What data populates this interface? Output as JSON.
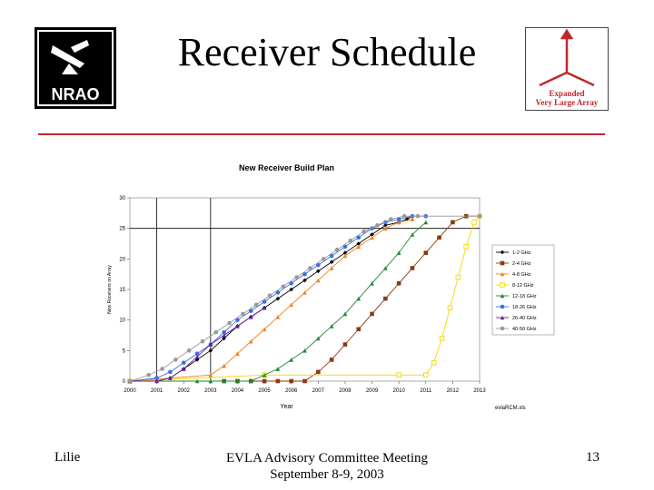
{
  "slide": {
    "title": "Receiver Schedule",
    "footer_left": "Lilie",
    "footer_center_line1": "EVLA Advisory Committee Meeting",
    "footer_center_line2": "September 8-9, 2003",
    "page_number": "13",
    "rule_color": "#c0272d"
  },
  "logos": {
    "left": {
      "text": "NRAO"
    },
    "right": {
      "line1": "Expanded",
      "line2": "Very Large Array"
    }
  },
  "chart_data": {
    "type": "line",
    "title": "New Receiver Build Plan",
    "xlabel": "Year",
    "ylabel": "New Receivers on Array",
    "file_label": "evlaRCM.xls",
    "xlim": [
      2000,
      2013
    ],
    "ylim": [
      0,
      30
    ],
    "x_ticks": [
      "2000",
      "2001",
      "2002",
      "2003",
      "2004",
      "2005",
      "2006",
      "2007",
      "2008",
      "2009",
      "2010",
      "2011",
      "2012",
      "2013"
    ],
    "y_ticks": [
      "0",
      "5",
      "10",
      "15",
      "20",
      "25",
      "30"
    ],
    "reference_lines": {
      "vertical_x": [
        2001,
        2003
      ],
      "horizontal_y": [
        25
      ]
    },
    "series": [
      {
        "name": "1-2 GHz",
        "color": "#000000",
        "marker": "diamond",
        "x": [
          2000,
          2001,
          2001.5,
          2002,
          2002.5,
          2003,
          2003.5,
          2004,
          2004.5,
          2005,
          2005.5,
          2006,
          2006.5,
          2007,
          2007.5,
          2008,
          2008.5,
          2009,
          2009.5,
          2010,
          2010.3,
          2010.5
        ],
        "y": [
          0,
          0,
          0.5,
          2,
          3.5,
          5,
          7,
          9,
          10.5,
          12,
          13.5,
          15,
          16.5,
          18,
          19.5,
          21,
          22.5,
          24,
          25.5,
          26,
          26.5,
          27
        ]
      },
      {
        "name": "2-4 GHz",
        "color": "#8b3a0f",
        "marker": "square",
        "x": [
          2000,
          2003.5,
          2004,
          2004.5,
          2005,
          2005.5,
          2006,
          2006.5,
          2007,
          2007.5,
          2008,
          2008.5,
          2009,
          2009.5,
          2010,
          2010.5,
          2011,
          2011.5,
          2012,
          2012.5,
          2013
        ],
        "y": [
          0,
          0,
          0,
          0,
          0,
          0,
          0,
          0,
          1.5,
          3.5,
          6,
          8.5,
          11,
          13.5,
          16,
          18.5,
          21,
          23.5,
          26,
          27,
          27
        ]
      },
      {
        "name": "4-8 GHz",
        "color": "#f08020",
        "marker": "triangle",
        "x": [
          2000,
          2003,
          2003.5,
          2004,
          2004.5,
          2005,
          2005.5,
          2006,
          2006.5,
          2007,
          2007.5,
          2008,
          2008.5,
          2009,
          2009.5,
          2010,
          2010.5
        ],
        "y": [
          0,
          1,
          2.5,
          4.5,
          6.5,
          8.5,
          10.5,
          12.5,
          14.5,
          16.5,
          18.5,
          20.5,
          22,
          23.5,
          25,
          26,
          26.5
        ]
      },
      {
        "name": "8-12 GHz",
        "color": "#f5d800",
        "marker": "square-open",
        "x": [
          2000,
          2005,
          2010,
          2011,
          2011.3,
          2011.6,
          2011.9,
          2012.2,
          2012.5,
          2012.8,
          2013
        ],
        "y": [
          0,
          1,
          1,
          1,
          3,
          7,
          12,
          17,
          22,
          26,
          27
        ]
      },
      {
        "name": "12-18 GHz",
        "color": "#1a8a30",
        "marker": "triangle",
        "x": [
          2000,
          2002.5,
          2003,
          2003.5,
          2004,
          2004.5,
          2005,
          2005.5,
          2006,
          2006.5,
          2007,
          2007.5,
          2008,
          2008.5,
          2009,
          2009.5,
          2010,
          2010.5,
          2011
        ],
        "y": [
          0,
          0,
          0,
          0,
          0,
          0,
          1,
          2,
          3.5,
          5,
          7,
          9,
          11,
          13.5,
          16,
          18.5,
          21,
          24,
          26
        ]
      },
      {
        "name": "18-26 GHz",
        "color": "#3a6fe0",
        "marker": "circle",
        "x": [
          2000,
          2001,
          2001.5,
          2002,
          2002.5,
          2003,
          2003.5,
          2004,
          2004.5,
          2005,
          2005.5,
          2006,
          2006.5,
          2007,
          2007.5,
          2008,
          2008.5,
          2009,
          2009.5,
          2010,
          2010.5,
          2011
        ],
        "y": [
          0,
          0.5,
          1.5,
          3,
          4.5,
          6,
          8,
          10,
          11.5,
          13,
          14.5,
          16,
          17.5,
          19,
          20.5,
          22,
          23.5,
          25,
          26,
          26.5,
          27,
          27
        ]
      },
      {
        "name": "26-40 GHz",
        "color": "#6a1fa0",
        "marker": "triangle",
        "x": [
          2000,
          2001,
          2001.5,
          2002,
          2002.5,
          2003,
          2003.5,
          2004,
          2004.5,
          2005
        ],
        "y": [
          0,
          0,
          0.5,
          2,
          4,
          6,
          7.5,
          9,
          10.5,
          12
        ]
      },
      {
        "name": "40-50 GHz",
        "color": "#999999",
        "marker": "circle",
        "x": [
          2000,
          2000.7,
          2001.2,
          2001.7,
          2002.2,
          2002.7,
          2003.2,
          2003.7,
          2004.2,
          2004.7,
          2005.2,
          2005.7,
          2006.2,
          2006.7,
          2007.2,
          2007.7,
          2008.2,
          2008.7,
          2009.2,
          2009.7,
          2010.2,
          2010.7,
          2013
        ],
        "y": [
          0,
          1,
          2,
          3.5,
          5,
          6.5,
          8,
          9.5,
          11,
          12.5,
          14,
          15.5,
          17,
          18.5,
          20,
          21.5,
          23,
          24.5,
          25.5,
          26.5,
          27,
          27,
          27
        ]
      }
    ]
  }
}
